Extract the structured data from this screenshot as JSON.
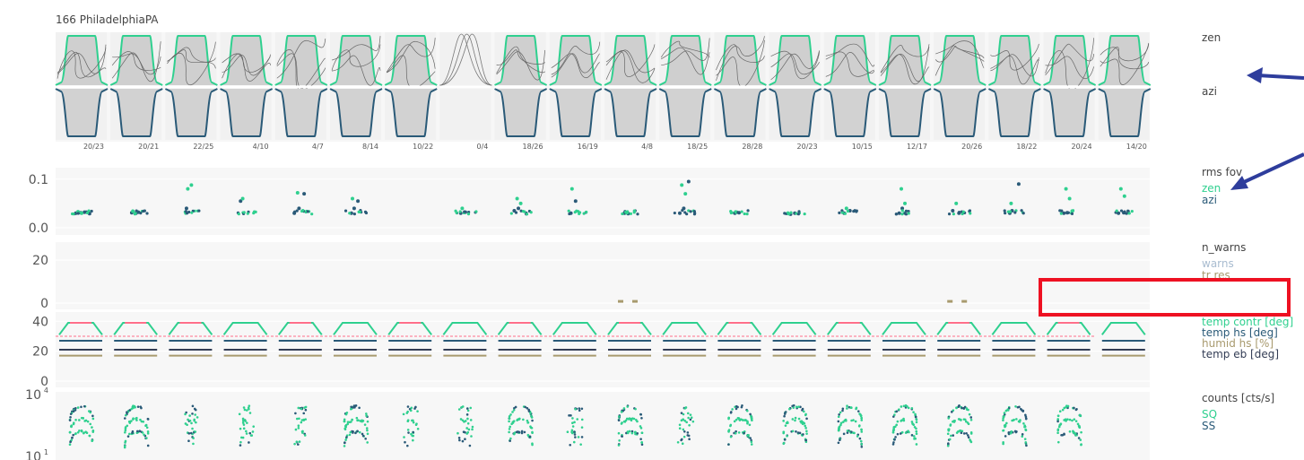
{
  "title": "166 PhiladelphiaPA",
  "colors": {
    "zen": "#2fd08f",
    "azi": "#2a5a78",
    "warns": "#a9bcd0",
    "tr_res": "#a89a6e",
    "temp_contr": "#2fd08f",
    "temp_contr_hot": "#ff6f8a",
    "temp_hs": "#2a5a78",
    "humid_hs": "#a89a6e",
    "temp_eb": "#333d55",
    "panel_bg": "#f7f7f7",
    "grid": "#ffffff",
    "arrow": "#2e3d9c",
    "highlight": "#ee1122"
  },
  "chart_data": [
    {
      "type": "area",
      "panel": "profiles",
      "series": [
        {
          "name": "zen"
        },
        {
          "name": "azi"
        }
      ],
      "right_labels": [
        "zen",
        "azi"
      ],
      "day_labels": [
        "20/23",
        "20/21",
        "22/25",
        "4/10",
        "4/7",
        "8/14",
        "10/22",
        "0/4",
        "18/26",
        "16/19",
        "4/8",
        "18/25",
        "28/28",
        "20/23",
        "10/15",
        "12/17",
        "20/26",
        "18/22",
        "20/24",
        "14/20"
      ]
    },
    {
      "type": "scatter",
      "panel": "rms_fov",
      "title": "rms fov",
      "series": [
        {
          "name": "zen"
        },
        {
          "name": "azi"
        }
      ],
      "yticks": [
        "0.1",
        "0.0"
      ],
      "ylim": [
        0.0,
        0.12
      ],
      "days": [
        {
          "azi": [
            0.03,
            0.031,
            0.032,
            0.029
          ],
          "zen": [
            0.033,
            0.03
          ]
        },
        {
          "azi": [
            0.031,
            0.03,
            0.032
          ],
          "zen": [
            0.034
          ]
        },
        {
          "azi": [
            0.04
          ],
          "zen": [
            0.08,
            0.088
          ]
        },
        {
          "azi": [
            0.055
          ],
          "zen": [
            0.06
          ]
        },
        {
          "azi": [
            0.03,
            0.04,
            0.07
          ],
          "zen": [
            0.072
          ]
        },
        {
          "azi": [
            0.03,
            0.04,
            0.055
          ],
          "zen": [
            0.06
          ]
        },
        {
          "azi": [],
          "zen": []
        },
        {
          "azi": [
            0.03,
            0.032
          ],
          "zen": [
            0.04
          ]
        },
        {
          "azi": [
            0.035,
            0.04
          ],
          "zen": [
            0.06,
            0.05
          ]
        },
        {
          "azi": [
            0.03,
            0.055
          ],
          "zen": [
            0.08
          ]
        },
        {
          "azi": [
            0.03,
            0.029
          ],
          "zen": [
            0.031
          ]
        },
        {
          "azi": [
            0.03,
            0.04,
            0.095
          ],
          "zen": [
            0.088,
            0.07
          ]
        },
        {
          "azi": [
            0.03,
            0.031
          ],
          "zen": [
            0.032
          ]
        },
        {
          "azi": [
            0.028,
            0.03
          ],
          "zen": []
        },
        {
          "azi": [
            0.03,
            0.035
          ],
          "zen": [
            0.04
          ]
        },
        {
          "azi": [
            0.03,
            0.04
          ],
          "zen": [
            0.08,
            0.05
          ]
        },
        {
          "azi": [
            0.035,
            0.03
          ],
          "zen": [
            0.05
          ]
        },
        {
          "azi": [
            0.03,
            0.035,
            0.09
          ],
          "zen": [
            0.05
          ]
        },
        {
          "azi": [
            0.03,
            0.031
          ],
          "zen": [
            0.08,
            0.06
          ]
        },
        {
          "azi": [
            0.03,
            0.031
          ],
          "zen": [
            0.08,
            0.065
          ]
        }
      ]
    },
    {
      "type": "bar",
      "panel": "n_warns",
      "title": "n_warns",
      "series": [
        {
          "name": "warns"
        },
        {
          "name": "tr res"
        }
      ],
      "yticks": [
        "20",
        "0"
      ],
      "ylim": [
        0,
        25
      ],
      "marks": [
        {
          "day": 10,
          "value": 1
        },
        {
          "day": 16,
          "value": 1
        }
      ]
    },
    {
      "type": "line",
      "panel": "temps",
      "series": [
        {
          "name": "temp contr [deg]",
          "value": 35
        },
        {
          "name": "temp hs [deg]",
          "value": 27
        },
        {
          "name": "humid hs [%]",
          "value": 17
        },
        {
          "name": "temp eb [deg]",
          "value": 21
        }
      ],
      "setpoint": 30,
      "yticks": [
        "40",
        "20",
        "0"
      ],
      "ylim": [
        0,
        42
      ]
    },
    {
      "type": "scatter",
      "panel": "counts",
      "title": "counts [cts/s]",
      "series": [
        {
          "name": "SQ"
        },
        {
          "name": "SS"
        }
      ],
      "yticks": [
        "10",
        "10"
      ],
      "ytick_exponents": [
        "4",
        "1"
      ],
      "yscale": "log"
    }
  ]
}
